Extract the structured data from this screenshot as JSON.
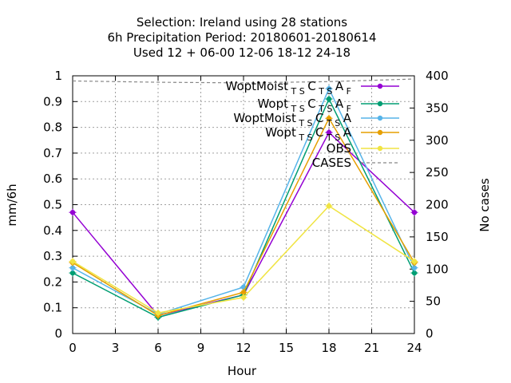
{
  "chart_data": {
    "type": "line",
    "title_lines": [
      "Selection: Ireland using    28 stations",
      "6h Precipitation   Period: 20180601-20180614",
      "Used  12 + 06-00 12-06 18-12 24-18"
    ],
    "xlabel": "Hour",
    "ylabel": "mm/6h",
    "y2label": "No cases",
    "xlim": [
      0,
      24
    ],
    "ylim": [
      0,
      1
    ],
    "y2lim": [
      0,
      400
    ],
    "xticks": [
      0,
      3,
      6,
      9,
      12,
      15,
      18,
      21,
      24
    ],
    "yticks": [
      0,
      0.1,
      0.2,
      0.3,
      0.4,
      0.5,
      0.6,
      0.7,
      0.8,
      0.9,
      1
    ],
    "y2ticks": [
      0,
      50,
      100,
      150,
      200,
      250,
      300,
      350,
      400
    ],
    "grid": true,
    "legend_position": "top-right",
    "x": [
      0,
      6,
      12,
      18,
      24
    ],
    "series": [
      {
        "name": "WoptMoist",
        "sub1": "T S",
        "mid": "C",
        "sub2": "T S",
        "end": "A",
        "sub3": "F",
        "color": "#9400d3",
        "values": [
          0.47,
          0.07,
          0.15,
          0.78,
          0.47
        ],
        "axis": "y1"
      },
      {
        "name": "Wopt",
        "sub1": "T S",
        "mid": "C",
        "sub2": "T S",
        "end": "A",
        "sub3": "F",
        "color": "#009e73",
        "values": [
          0.235,
          0.063,
          0.15,
          0.91,
          0.235
        ],
        "axis": "y1"
      },
      {
        "name": "WoptMoist",
        "sub1": "T S",
        "mid": "C",
        "sub2": "T S",
        "end": "A",
        "sub3": "",
        "color": "#56b4e9",
        "values": [
          0.255,
          0.075,
          0.18,
          0.95,
          0.255
        ],
        "axis": "y1"
      },
      {
        "name": "Wopt",
        "sub1": "T S",
        "mid": "C",
        "sub2": "T S",
        "end": "A",
        "sub3": "",
        "color": "#e69f00",
        "values": [
          0.275,
          0.07,
          0.16,
          0.835,
          0.275
        ],
        "axis": "y1"
      },
      {
        "name": "OBS",
        "sub1": "",
        "mid": "",
        "sub2": "",
        "end": "",
        "sub3": "",
        "color": "#f0e442",
        "values": [
          0.28,
          0.08,
          0.14,
          0.495,
          0.28
        ],
        "axis": "y1"
      },
      {
        "name": "CASES",
        "sub1": "",
        "mid": "",
        "sub2": "",
        "end": "",
        "sub3": "",
        "color": "#888888",
        "values": [
          392,
          390,
          389,
          391,
          395
        ],
        "axis": "y2",
        "dashed": true
      }
    ]
  }
}
